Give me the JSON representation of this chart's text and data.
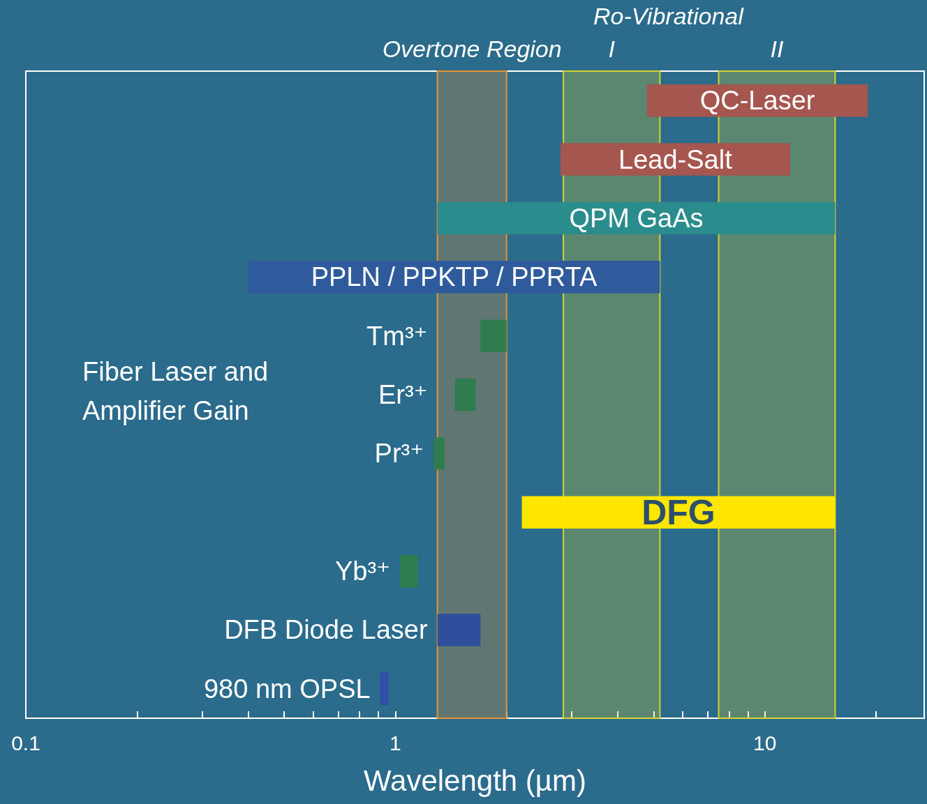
{
  "chart_data": {
    "type": "bar",
    "orientation": "horizontal",
    "log": "x",
    "xlabel": "Wavelength (µm)",
    "categories": [
      "QC-Laser",
      "Lead-Salt",
      "QPM GaAs",
      "PPLN / PPKTP / PPRTA",
      "Tm³⁺",
      "Er³⁺",
      "Pr³⁺",
      "DFG",
      "Yb³⁺",
      "DFB Diode Laser",
      "980 nm OPSL"
    ],
    "base": [
      4.8,
      2.8,
      1.3,
      0.4,
      1.7,
      1.45,
      1.27,
      2.2,
      1.03,
      1.3,
      0.91
    ],
    "values": [
      14.2,
      8.9,
      14.2,
      4.8,
      0.3,
      0.2,
      0.09,
      13.3,
      0.12,
      0.4,
      0.05
    ],
    "colors": [
      "#a5564e",
      "#a5564e",
      "#2a8c8c",
      "#2f5b9c",
      "#2f7d4f",
      "#2f7d4f",
      "#2f7d4f",
      "#ffe600",
      "#2f7d4f",
      "#2f4f9c",
      "#2f4fa8"
    ],
    "xlim": [
      0.1,
      27
    ],
    "xticks": [
      0.1,
      {
        "value": 0.2,
        "label": null
      },
      {
        "value": 0.3,
        "label": null
      },
      {
        "value": 0.4,
        "label": null
      },
      {
        "value": 0.5,
        "label": null
      },
      {
        "value": 0.6,
        "label": null
      },
      {
        "value": 0.7,
        "label": null
      },
      {
        "value": 0.8,
        "label": null
      },
      {
        "value": 0.9,
        "label": null
      },
      1,
      {
        "value": 2,
        "label": null
      },
      {
        "value": 3,
        "label": null
      },
      {
        "value": 4,
        "label": null
      },
      {
        "value": 5,
        "label": null
      },
      {
        "value": 6,
        "label": null
      },
      {
        "value": 7,
        "label": null
      },
      {
        "value": 8,
        "label": null
      },
      {
        "value": 9,
        "label": null
      },
      10,
      {
        "value": 20,
        "label": null
      }
    ],
    "bands": [
      {
        "axis": "x",
        "from": 1.3,
        "to": 2.0,
        "label": "Overtone Region",
        "color": "#e8922e"
      },
      {
        "axis": "x",
        "from": 2.85,
        "to": 5.2,
        "label": "I",
        "color": "#d6d22a"
      },
      {
        "axis": "x",
        "from": 7.5,
        "to": 15.5,
        "label": "II",
        "color": "#d6d22a"
      }
    ],
    "annotations": [
      "Ro-Vibrational",
      "Fiber Laser and Amplifier Gain"
    ]
  }
}
